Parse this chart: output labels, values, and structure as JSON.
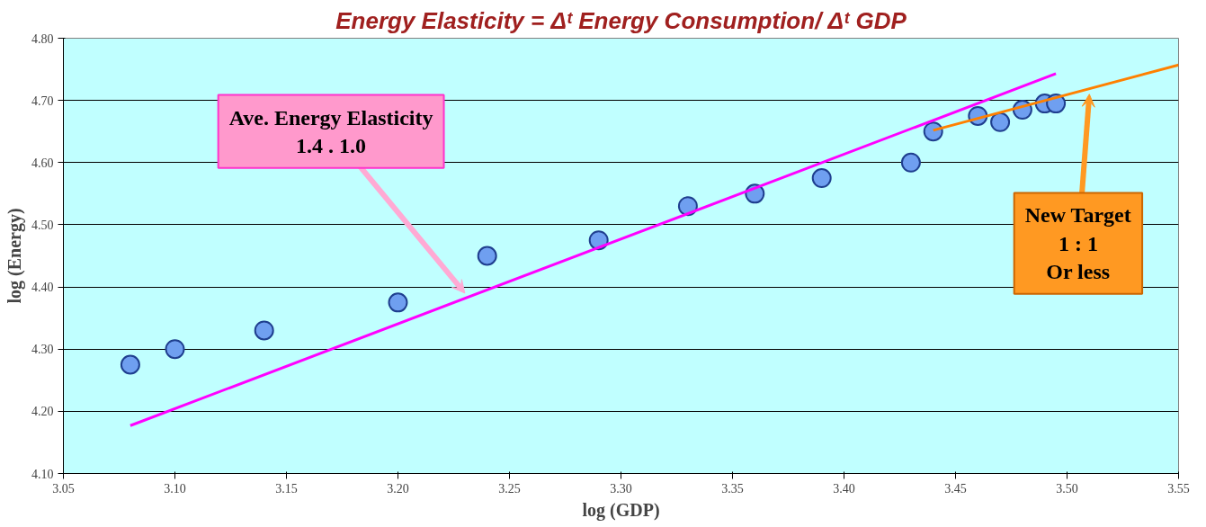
{
  "chart_data": {
    "type": "scatter",
    "title": "Energy Elasticity = Δᵗ Energy Consumption/ Δᵗ GDP",
    "xlabel": "log (GDP)",
    "ylabel": "log (Energy)",
    "x": [
      3.08,
      3.1,
      3.14,
      3.2,
      3.24,
      3.29,
      3.33,
      3.36,
      3.39,
      3.43,
      3.44,
      3.46,
      3.47,
      3.48,
      3.49,
      3.495
    ],
    "series": [
      {
        "marker": "circle",
        "color": "#6f9ff0",
        "values": [
          4.275,
          4.3,
          4.33,
          4.375,
          4.45,
          4.475,
          4.53,
          4.55,
          4.575,
          4.6,
          4.65,
          4.675,
          4.665,
          4.685,
          4.695,
          4.695
        ]
      },
      {
        "type": "line",
        "color": "#ff00ff",
        "x": [
          3.08,
          3.495
        ],
        "values": [
          4.177,
          4.743
        ]
      },
      {
        "type": "line",
        "color": "#ff8000",
        "x": [
          3.44,
          3.55
        ],
        "values": [
          4.652,
          4.757
        ]
      }
    ],
    "annotations": [
      {
        "text": "Ave. Energy Elasticity\n1.4 . 1.0",
        "x": 3.23,
        "y": 4.39
      },
      {
        "text": "New Target\n1 : 1\nOr less",
        "x": 3.51,
        "y": 4.71
      }
    ],
    "xlim": [
      3.05,
      3.55
    ],
    "ylim": [
      4.1,
      4.8
    ],
    "xticks": [
      {
        "value": 3.05,
        "label": "3.05"
      },
      {
        "value": 3.1,
        "label": "3.10"
      },
      {
        "value": 3.15,
        "label": "3.15"
      },
      {
        "value": 3.2,
        "label": "3.20"
      },
      {
        "value": 3.25,
        "label": "3.25"
      },
      {
        "value": 3.3,
        "label": "3.30"
      },
      {
        "value": 3.35,
        "label": "3.35"
      },
      {
        "value": 3.4,
        "label": "3.40"
      },
      {
        "value": 3.45,
        "label": "3.45"
      },
      {
        "value": 3.5,
        "label": "3.50"
      },
      {
        "value": 3.55,
        "label": "3.55"
      }
    ],
    "yticks": [
      {
        "value": 4.1,
        "label": "4.10"
      },
      {
        "value": 4.2,
        "label": "4.20"
      },
      {
        "value": 4.3,
        "label": "4.30"
      },
      {
        "value": 4.4,
        "label": "4.40"
      },
      {
        "value": 4.5,
        "label": "4.50"
      },
      {
        "value": 4.6,
        "label": "4.60"
      },
      {
        "value": 4.7,
        "label": "4.70"
      },
      {
        "value": 4.8,
        "label": "4.80"
      }
    ],
    "grid": "y"
  }
}
